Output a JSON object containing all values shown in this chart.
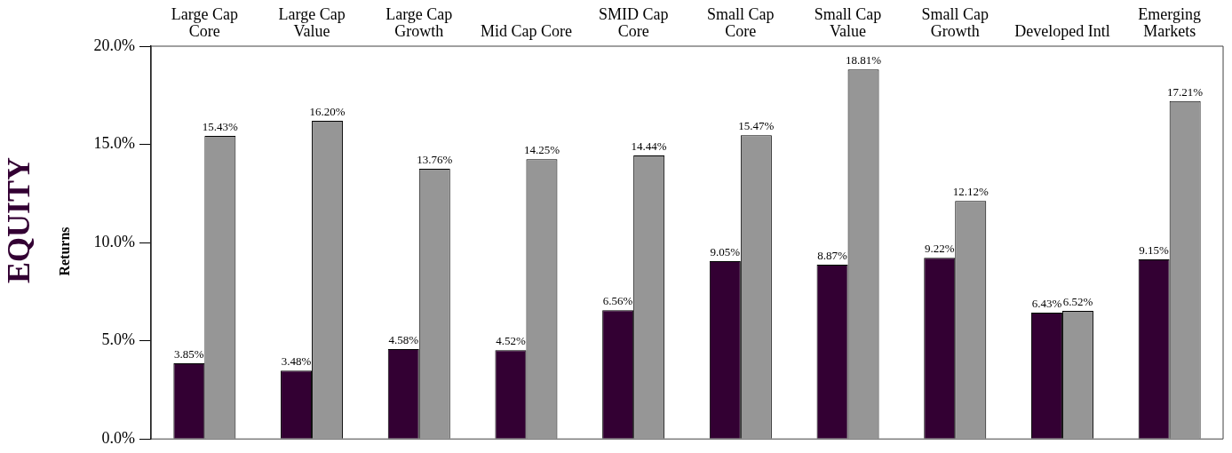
{
  "chart_data": {
    "type": "bar",
    "title": "EQUITY",
    "ylabel": "Returns",
    "categories": [
      "Large Cap\nCore",
      "Large Cap\nValue",
      "Large Cap\nGrowth",
      "Mid Cap Core",
      "SMID Cap\nCore",
      "Small Cap\nCore",
      "Small Cap\nValue",
      "Small Cap\nGrowth",
      "Developed Intl",
      "Emerging\nMarkets"
    ],
    "series": [
      {
        "color": "#330033",
        "values": [
          3.85,
          3.48,
          4.58,
          4.52,
          6.56,
          9.05,
          8.87,
          9.22,
          6.43,
          9.15
        ],
        "value_labels": [
          "3.85%",
          "3.48%",
          "4.58%",
          "4.52%",
          "6.56%",
          "9.05%",
          "8.87%",
          "9.22%",
          "6.43%",
          "9.15%"
        ]
      },
      {
        "color": "#969696",
        "values": [
          15.43,
          16.2,
          13.76,
          14.25,
          14.44,
          15.47,
          18.81,
          12.12,
          6.52,
          17.21
        ],
        "value_labels": [
          "15.43%",
          "16.20%",
          "13.76%",
          "14.25%",
          "14.44%",
          "15.47%",
          "18.81%",
          "12.12%",
          "6.52%",
          "17.21%"
        ]
      }
    ],
    "ylim": [
      0,
      20
    ],
    "yticks": [
      {
        "value": 0,
        "label": "0.0%"
      },
      {
        "value": 5,
        "label": "5.0%"
      },
      {
        "value": 10,
        "label": "10.0%"
      },
      {
        "value": 15,
        "label": "15.0%"
      },
      {
        "value": 20,
        "label": "20.0%"
      }
    ]
  }
}
